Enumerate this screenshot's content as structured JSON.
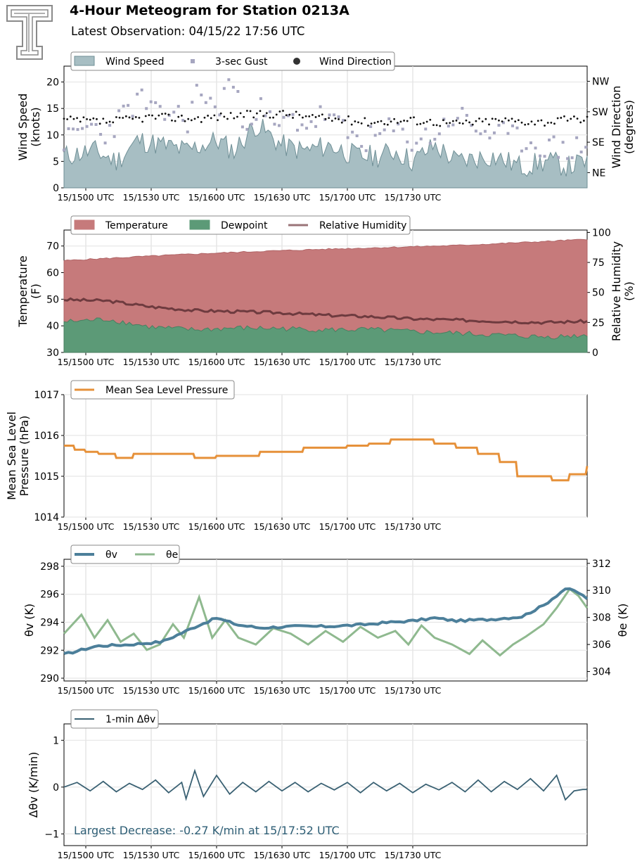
{
  "header": {
    "title": "4-Hour Meteogram for Station 0213A",
    "subtitle": "Latest Observation: 04/15/22 17:56 UTC"
  },
  "x_tick_labels": [
    "15/1500 UTC",
    "15/1530 UTC",
    "15/1600 UTC",
    "15/1630 UTC",
    "15/1700 UTC",
    "15/1730 UTC"
  ],
  "colors": {
    "wind_fill": "#a7bec3",
    "wind_edge": "#6f8f96",
    "gust": "#a6a6c0",
    "direction": "#111111",
    "temperature": "#c67a7b",
    "dewpoint": "#5c9a77",
    "humidity": "#6e3b3f",
    "pressure": "#e6913a",
    "theta_v": "#4c7f9a",
    "theta_e": "#8fb98f",
    "dtheta": "#3a6173",
    "annotation": "#2e5e75"
  },
  "chart_data": [
    {
      "type": "area",
      "legend": [
        "Wind Speed",
        "3-sec Gust",
        "Wind Direction"
      ],
      "ylabel": [
        "Wind Speed",
        "(knots)"
      ],
      "ylabel_right": [
        "Wind Direction",
        "(degrees)"
      ],
      "yticks": [
        "0",
        "5",
        "10",
        "15",
        "20"
      ],
      "yticks_right": [
        "NE",
        "SE",
        "SW",
        "NW"
      ],
      "ylim": [
        0,
        23
      ],
      "series": [
        {
          "name": "Wind Speed",
          "x_minutes": [
            0,
            14,
            24,
            34,
            46,
            56,
            70,
            78,
            88,
            100,
            110,
            122,
            134,
            144,
            152,
            160,
            170,
            180,
            196,
            210,
            222,
            232,
            240
          ],
          "values": [
            6,
            7,
            5,
            9,
            8,
            7,
            9,
            7,
            12,
            8,
            7,
            8,
            6,
            6,
            7,
            5,
            8,
            5,
            6,
            4,
            5,
            4,
            5
          ]
        },
        {
          "name": "3-sec Gust",
          "x_minutes": [
            3,
            12,
            18,
            28,
            35,
            44,
            50,
            56,
            62,
            70,
            76,
            82,
            90,
            97,
            104,
            112,
            120,
            130,
            140,
            150,
            160,
            170,
            180,
            190,
            200,
            210,
            220,
            230,
            238
          ],
          "values": [
            9,
            12,
            10,
            14,
            17,
            13,
            15,
            12,
            19,
            14,
            21,
            13,
            15,
            11,
            13,
            12,
            14,
            10,
            9,
            11,
            9,
            10,
            14,
            11,
            10,
            9,
            8,
            7,
            8
          ]
        },
        {
          "name": "Wind Direction",
          "x_minutes": [
            0,
            20,
            40,
            60,
            80,
            100,
            120,
            140,
            160,
            180,
            200,
            220,
            240
          ],
          "direction_degrees": [
            200,
            195,
            210,
            205,
            215,
            220,
            205,
            195,
            200,
            190,
            200,
            195,
            205
          ]
        }
      ]
    },
    {
      "type": "area",
      "legend": [
        "Temperature",
        "Dewpoint",
        "Relative Humidity"
      ],
      "ylabel": [
        "Temperature",
        "(F)"
      ],
      "ylabel_right": [
        "Relative Humidity",
        "(%)"
      ],
      "yticks": [
        "30",
        "40",
        "50",
        "60",
        "70"
      ],
      "yticks_right": [
        "0",
        "25",
        "50",
        "75",
        "100"
      ],
      "ylim": [
        30,
        76
      ],
      "ylim_right": [
        0,
        102
      ],
      "series": [
        {
          "name": "Temperature",
          "x_minutes": [
            0,
            30,
            60,
            90,
            120,
            150,
            180,
            210,
            240
          ],
          "values": [
            64.5,
            65.8,
            67,
            68,
            68.8,
            69.5,
            70.2,
            71.3,
            72.5
          ]
        },
        {
          "name": "Dewpoint",
          "x_minutes": [
            0,
            20,
            40,
            60,
            80,
            100,
            120,
            140,
            160,
            180,
            200,
            220,
            240
          ],
          "values": [
            41.5,
            42.5,
            39.5,
            38.5,
            39.2,
            39,
            38.5,
            38.6,
            37.8,
            37.2,
            36.5,
            35.8,
            36.5
          ]
        },
        {
          "name": "Relative Humidity",
          "x_minutes": [
            0,
            20,
            40,
            60,
            80,
            100,
            120,
            140,
            160,
            180,
            200,
            220,
            240
          ],
          "values": [
            44,
            43,
            38,
            35,
            34,
            33,
            31,
            30,
            28,
            27,
            26,
            25,
            26
          ]
        }
      ]
    },
    {
      "type": "line",
      "legend": [
        "Mean Sea Level Pressure"
      ],
      "ylabel": [
        "Mean Sea Level",
        "Pressure (hPa)"
      ],
      "yticks": [
        "1014",
        "1015",
        "1016",
        "1017"
      ],
      "ylim": [
        1014,
        1017
      ],
      "series": [
        {
          "name": "Mean Sea Level Pressure",
          "x_minutes": [
            0,
            5,
            10,
            16,
            24,
            32,
            40,
            50,
            60,
            70,
            80,
            90,
            100,
            110,
            120,
            130,
            140,
            150,
            160,
            170,
            180,
            190,
            200,
            208,
            216,
            224,
            232,
            240
          ],
          "values": [
            1015.75,
            1015.65,
            1015.6,
            1015.55,
            1015.45,
            1015.55,
            1015.55,
            1015.55,
            1015.45,
            1015.5,
            1015.5,
            1015.6,
            1015.6,
            1015.7,
            1015.7,
            1015.75,
            1015.8,
            1015.9,
            1015.9,
            1015.8,
            1015.7,
            1015.55,
            1015.35,
            1015.0,
            1015.0,
            1014.9,
            1015.05,
            1015.25
          ]
        }
      ]
    },
    {
      "type": "line",
      "legend": [
        "θv",
        "θe"
      ],
      "ylabel": [
        "θv (K)"
      ],
      "ylabel_right": [
        "θe (K)"
      ],
      "yticks": [
        "290",
        "292",
        "294",
        "296",
        "298"
      ],
      "yticks_right": [
        "304",
        "306",
        "308",
        "310",
        "312"
      ],
      "ylim": [
        289.8,
        298.5
      ],
      "ylim_right": [
        303.3,
        312.3
      ],
      "series": [
        {
          "name": "θv",
          "x_minutes": [
            0,
            15,
            30,
            45,
            55,
            62,
            70,
            80,
            90,
            105,
            120,
            135,
            150,
            160,
            170,
            180,
            195,
            210,
            220,
            230,
            235,
            240
          ],
          "values": [
            291.7,
            292.3,
            292.4,
            292.6,
            293.3,
            293.8,
            294.3,
            293.8,
            293.6,
            293.7,
            293.7,
            293.8,
            294.0,
            294.1,
            294.3,
            294.1,
            294.2,
            294.4,
            295.2,
            296.4,
            296.2,
            295.7
          ]
        },
        {
          "name": "θe",
          "x_minutes": [
            0,
            8,
            14,
            20,
            26,
            32,
            38,
            44,
            50,
            55,
            62,
            68,
            74,
            80,
            88,
            96,
            104,
            112,
            120,
            128,
            136,
            144,
            152,
            158,
            164,
            170,
            178,
            186,
            192,
            200,
            206,
            212,
            220,
            226,
            232,
            236,
            240
          ],
          "values": [
            306.8,
            308.2,
            306.5,
            307.8,
            306.2,
            306.8,
            305.6,
            306.0,
            307.5,
            306.5,
            309.5,
            306.5,
            307.8,
            306.5,
            306.0,
            307.2,
            306.8,
            306.0,
            307.0,
            306.2,
            307.3,
            306.5,
            307.0,
            306.0,
            307.4,
            306.5,
            306.0,
            305.3,
            306.3,
            305.2,
            306.0,
            306.6,
            307.5,
            308.7,
            310.1,
            309.6,
            308.7
          ]
        }
      ]
    },
    {
      "type": "line",
      "legend": [
        "1-min Δθv"
      ],
      "ylabel": [
        "Δθv (K/min)"
      ],
      "yticks": [
        "−1",
        "0",
        "1"
      ],
      "ylim": [
        -1.25,
        1.35
      ],
      "annotation": "Largest Decrease: -0.27 K/min at 15/17:52 UTC",
      "series": [
        {
          "name": "1-min Δθv",
          "x_minutes": [
            0,
            6,
            12,
            18,
            24,
            30,
            36,
            42,
            48,
            54,
            56,
            60,
            64,
            70,
            76,
            82,
            88,
            94,
            100,
            106,
            112,
            118,
            124,
            130,
            136,
            142,
            148,
            154,
            160,
            166,
            172,
            178,
            184,
            190,
            196,
            202,
            208,
            214,
            220,
            226,
            230,
            234,
            238,
            240
          ],
          "values": [
            0.0,
            0.1,
            -0.08,
            0.12,
            -0.1,
            0.08,
            -0.05,
            0.15,
            -0.12,
            0.1,
            -0.25,
            0.35,
            -0.2,
            0.25,
            -0.15,
            0.1,
            -0.1,
            0.12,
            -0.08,
            0.1,
            -0.1,
            0.08,
            -0.06,
            0.1,
            -0.12,
            0.1,
            -0.08,
            0.08,
            -0.12,
            0.06,
            -0.06,
            0.1,
            -0.1,
            0.15,
            -0.1,
            0.12,
            -0.05,
            0.18,
            -0.08,
            0.25,
            -0.27,
            -0.08,
            -0.05,
            -0.05
          ]
        }
      ]
    }
  ]
}
